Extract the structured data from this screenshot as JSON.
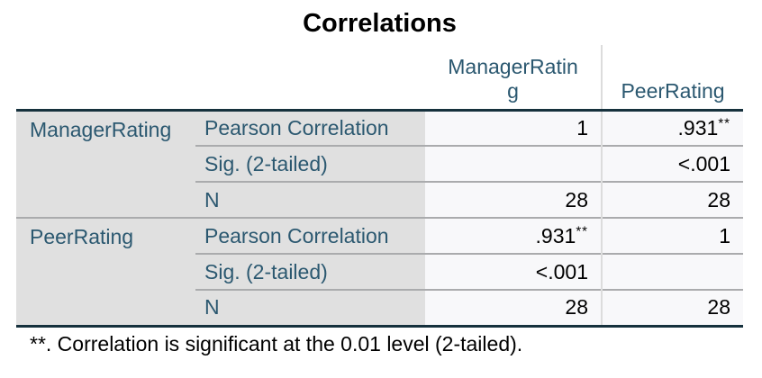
{
  "title": "Correlations",
  "footnote": "**. Correlation is significant at the 0.01 level (2-tailed).",
  "table": {
    "col_headers": {
      "var1": "ManagerRating",
      "var2": "PeerRating"
    },
    "sections": [
      {
        "variable": "ManagerRating",
        "rows": [
          {
            "stat": "Pearson Correlation",
            "c1": {
              "v": "1",
              "sup": ""
            },
            "c2": {
              "v": ".931",
              "sup": "**"
            }
          },
          {
            "stat": "Sig. (2-tailed)",
            "c1": {
              "v": "",
              "sup": ""
            },
            "c2": {
              "v": "<.001",
              "sup": ""
            }
          },
          {
            "stat": "N",
            "c1": {
              "v": "28",
              "sup": ""
            },
            "c2": {
              "v": "28",
              "sup": ""
            }
          }
        ]
      },
      {
        "variable": "PeerRating",
        "rows": [
          {
            "stat": "Pearson Correlation",
            "c1": {
              "v": ".931",
              "sup": "**"
            },
            "c2": {
              "v": "1",
              "sup": ""
            }
          },
          {
            "stat": "Sig. (2-tailed)",
            "c1": {
              "v": "<.001",
              "sup": ""
            },
            "c2": {
              "v": "",
              "sup": ""
            }
          },
          {
            "stat": "N",
            "c1": {
              "v": "28",
              "sup": ""
            },
            "c2": {
              "v": "28",
              "sup": ""
            }
          }
        ]
      }
    ]
  },
  "chart_data": {
    "type": "table",
    "title": "Correlations",
    "columns": [
      "",
      "",
      "ManagerRating",
      "PeerRating"
    ],
    "rows": [
      [
        "ManagerRating",
        "Pearson Correlation",
        "1",
        ".931**"
      ],
      [
        "ManagerRating",
        "Sig. (2-tailed)",
        "",
        "<.001"
      ],
      [
        "ManagerRating",
        "N",
        "28",
        "28"
      ],
      [
        "PeerRating",
        "Pearson Correlation",
        ".931**",
        "1"
      ],
      [
        "PeerRating",
        "Sig. (2-tailed)",
        "<.001",
        ""
      ],
      [
        "PeerRating",
        "N",
        "28",
        "28"
      ]
    ],
    "statistics": {
      "pearson_r": 0.931,
      "p_value": "<.001",
      "n": 28,
      "significance_level": 0.01,
      "tails": 2
    },
    "footnote": "**. Correlation is significant at the 0.01 level (2-tailed)."
  }
}
